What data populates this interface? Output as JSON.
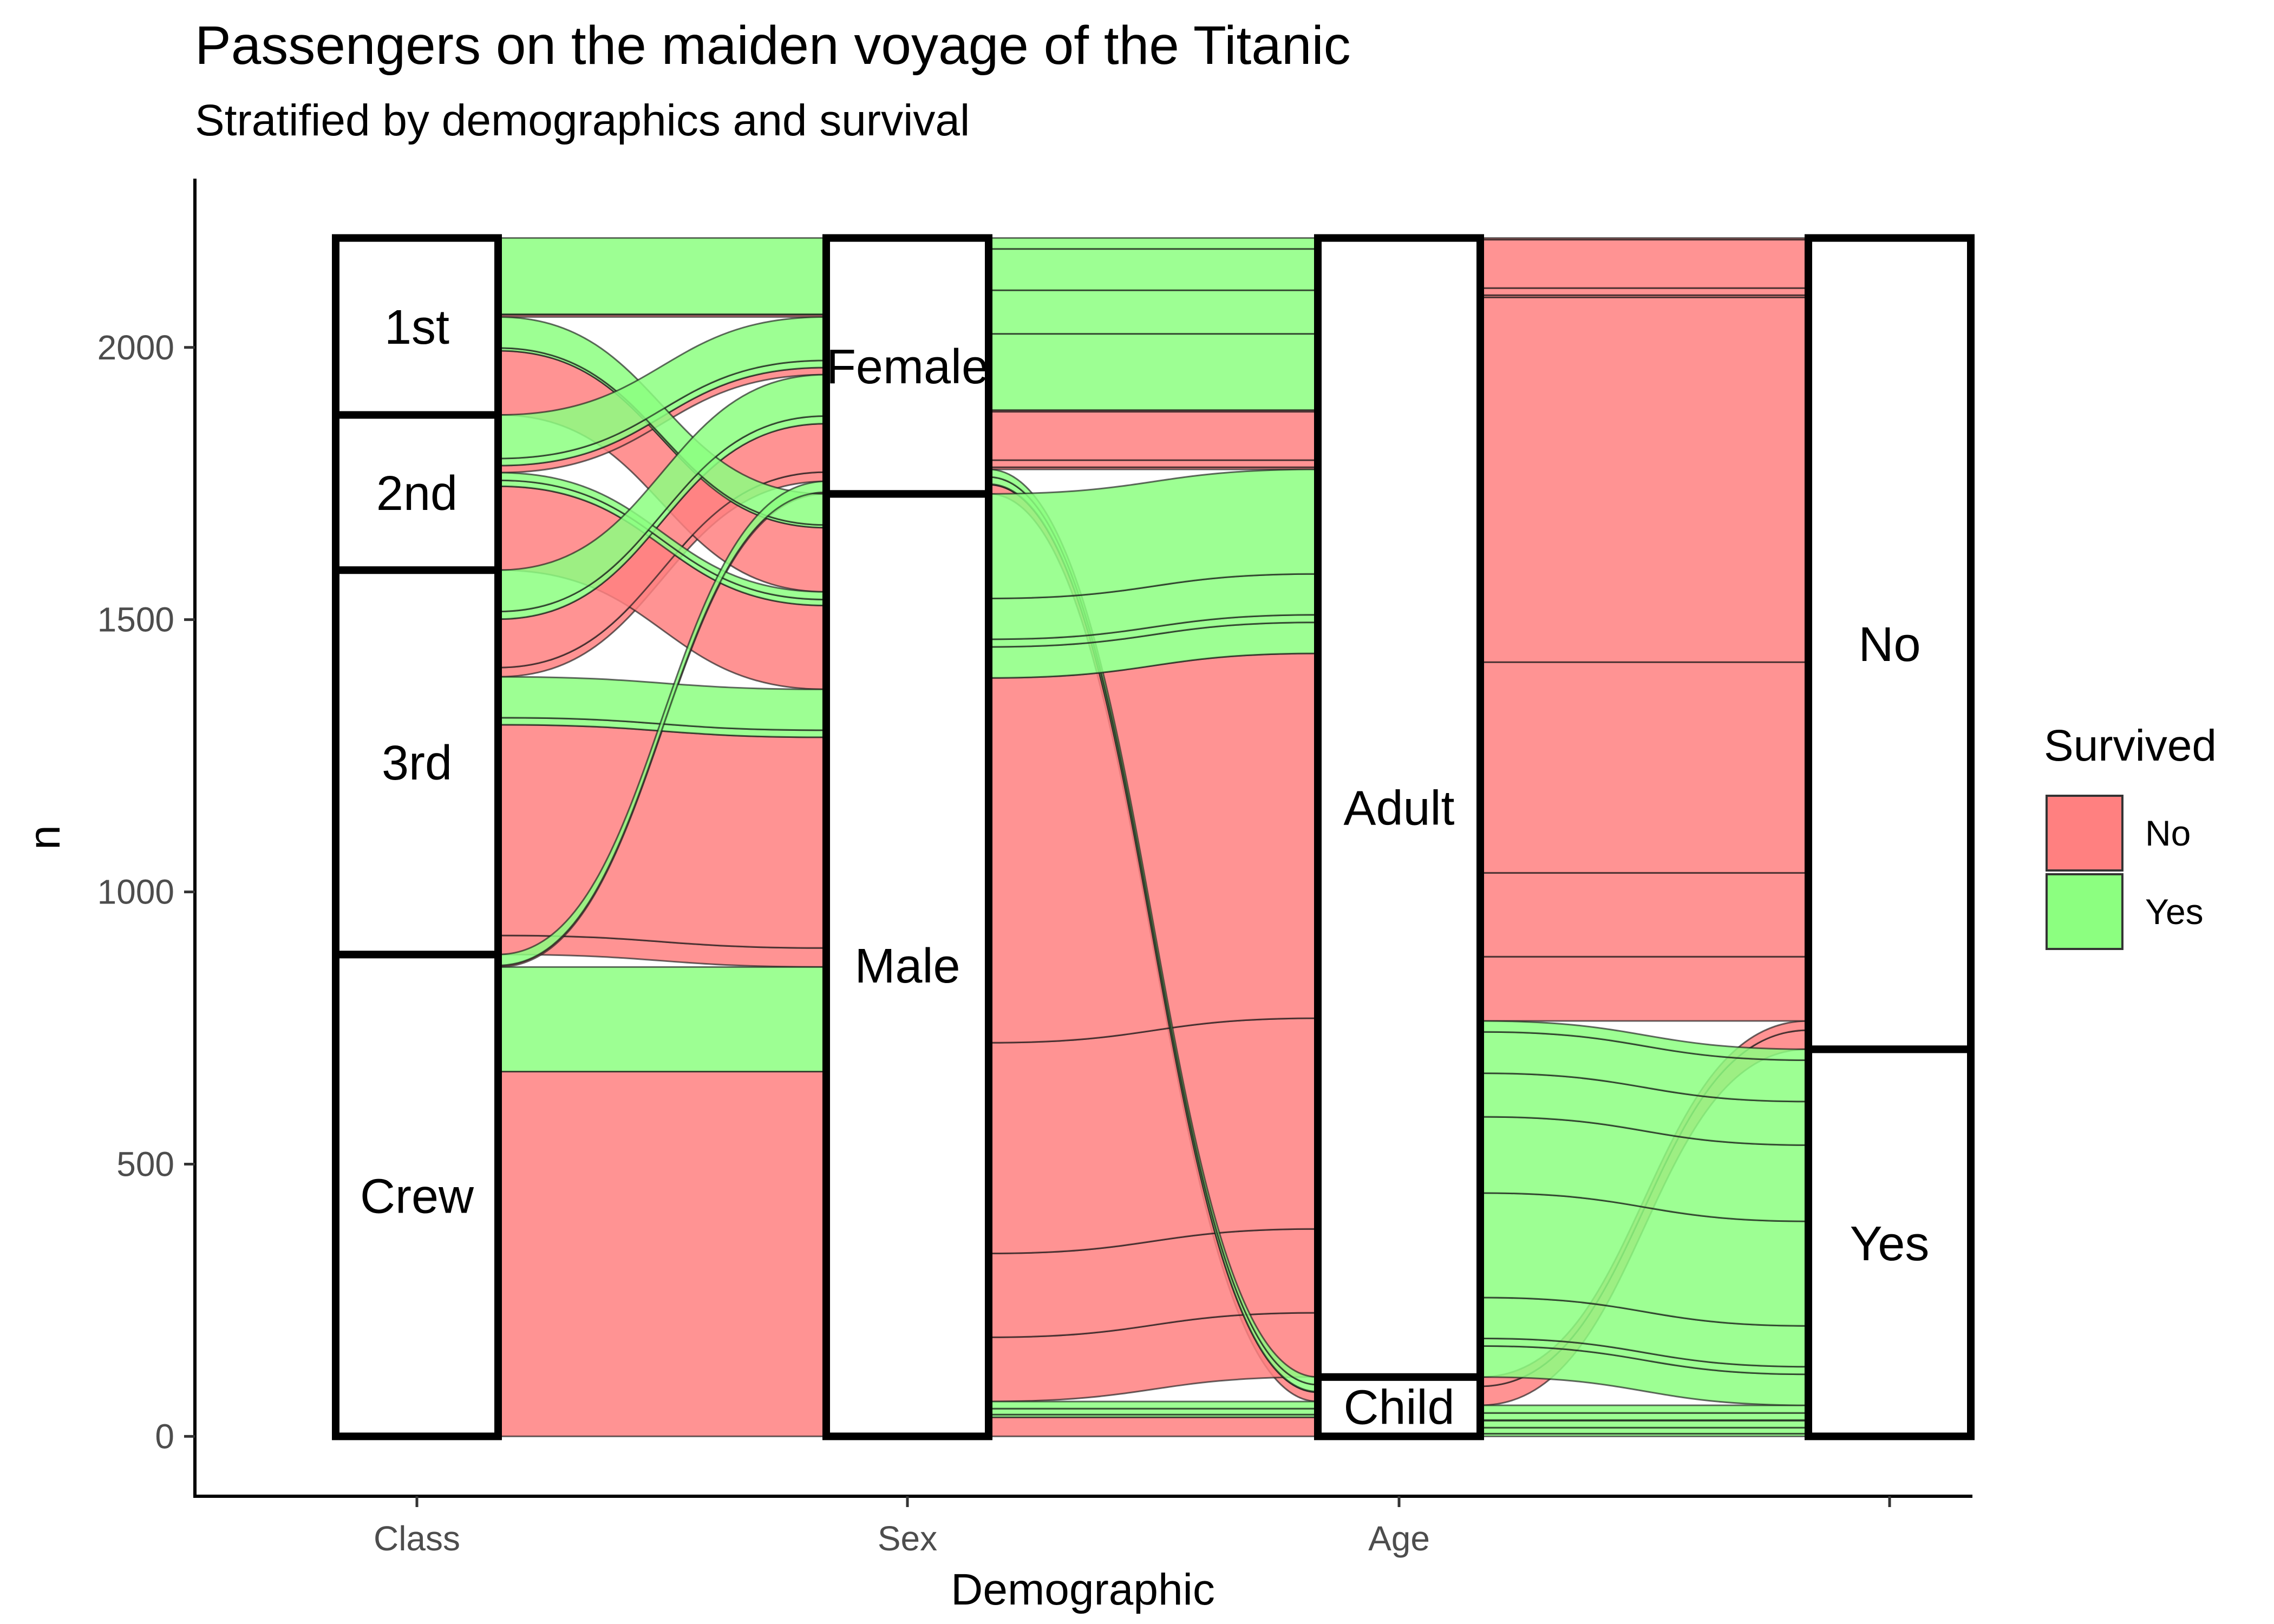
{
  "chart_data": {
    "type": "alluvial",
    "title": "Passengers on the maiden voyage of the Titanic",
    "subtitle": "Stratified by demographics and survival",
    "xlabel": "Demographic",
    "ylabel": "n",
    "ylim": [
      -110,
      2310
    ],
    "y_ticks": [
      0,
      500,
      1000,
      1500,
      2000
    ],
    "axes": [
      {
        "name": "Class",
        "label": "Class",
        "strata": [
          "Crew",
          "3rd",
          "2nd",
          "1st"
        ]
      },
      {
        "name": "Sex",
        "label": "Sex",
        "strata": [
          "Male",
          "Female"
        ]
      },
      {
        "name": "Age",
        "label": "Age",
        "strata": [
          "Child",
          "Adult"
        ]
      },
      {
        "name": "Survived",
        "label": "",
        "strata": [
          "Yes",
          "No"
        ]
      }
    ],
    "colors": {
      "No": "#ff8080",
      "Yes": "#8cff80"
    },
    "legend": {
      "title": "Survived",
      "position": "right",
      "entries": [
        "No",
        "Yes"
      ]
    },
    "grid": false,
    "records": [
      {
        "Class": "1st",
        "Sex": "Male",
        "Age": "Child",
        "Survived": "No",
        "n": 0
      },
      {
        "Class": "2nd",
        "Sex": "Male",
        "Age": "Child",
        "Survived": "No",
        "n": 0
      },
      {
        "Class": "3rd",
        "Sex": "Male",
        "Age": "Child",
        "Survived": "No",
        "n": 35
      },
      {
        "Class": "Crew",
        "Sex": "Male",
        "Age": "Child",
        "Survived": "No",
        "n": 0
      },
      {
        "Class": "1st",
        "Sex": "Female",
        "Age": "Child",
        "Survived": "No",
        "n": 0
      },
      {
        "Class": "2nd",
        "Sex": "Female",
        "Age": "Child",
        "Survived": "No",
        "n": 0
      },
      {
        "Class": "3rd",
        "Sex": "Female",
        "Age": "Child",
        "Survived": "No",
        "n": 17
      },
      {
        "Class": "Crew",
        "Sex": "Female",
        "Age": "Child",
        "Survived": "No",
        "n": 0
      },
      {
        "Class": "1st",
        "Sex": "Male",
        "Age": "Adult",
        "Survived": "No",
        "n": 118
      },
      {
        "Class": "2nd",
        "Sex": "Male",
        "Age": "Adult",
        "Survived": "No",
        "n": 154
      },
      {
        "Class": "3rd",
        "Sex": "Male",
        "Age": "Adult",
        "Survived": "No",
        "n": 387
      },
      {
        "Class": "Crew",
        "Sex": "Male",
        "Age": "Adult",
        "Survived": "No",
        "n": 670
      },
      {
        "Class": "1st",
        "Sex": "Female",
        "Age": "Adult",
        "Survived": "No",
        "n": 4
      },
      {
        "Class": "2nd",
        "Sex": "Female",
        "Age": "Adult",
        "Survived": "No",
        "n": 13
      },
      {
        "Class": "3rd",
        "Sex": "Female",
        "Age": "Adult",
        "Survived": "No",
        "n": 89
      },
      {
        "Class": "Crew",
        "Sex": "Female",
        "Age": "Adult",
        "Survived": "No",
        "n": 3
      },
      {
        "Class": "1st",
        "Sex": "Male",
        "Age": "Child",
        "Survived": "Yes",
        "n": 5
      },
      {
        "Class": "2nd",
        "Sex": "Male",
        "Age": "Child",
        "Survived": "Yes",
        "n": 11
      },
      {
        "Class": "3rd",
        "Sex": "Male",
        "Age": "Child",
        "Survived": "Yes",
        "n": 13
      },
      {
        "Class": "Crew",
        "Sex": "Male",
        "Age": "Child",
        "Survived": "Yes",
        "n": 0
      },
      {
        "Class": "1st",
        "Sex": "Female",
        "Age": "Child",
        "Survived": "Yes",
        "n": 1
      },
      {
        "Class": "2nd",
        "Sex": "Female",
        "Age": "Child",
        "Survived": "Yes",
        "n": 13
      },
      {
        "Class": "3rd",
        "Sex": "Female",
        "Age": "Child",
        "Survived": "Yes",
        "n": 14
      },
      {
        "Class": "Crew",
        "Sex": "Female",
        "Age": "Child",
        "Survived": "Yes",
        "n": 0
      },
      {
        "Class": "1st",
        "Sex": "Male",
        "Age": "Adult",
        "Survived": "Yes",
        "n": 57
      },
      {
        "Class": "2nd",
        "Sex": "Male",
        "Age": "Adult",
        "Survived": "Yes",
        "n": 14
      },
      {
        "Class": "3rd",
        "Sex": "Male",
        "Age": "Adult",
        "Survived": "Yes",
        "n": 75
      },
      {
        "Class": "Crew",
        "Sex": "Male",
        "Age": "Adult",
        "Survived": "Yes",
        "n": 192
      },
      {
        "Class": "1st",
        "Sex": "Female",
        "Age": "Adult",
        "Survived": "Yes",
        "n": 140
      },
      {
        "Class": "2nd",
        "Sex": "Female",
        "Age": "Adult",
        "Survived": "Yes",
        "n": 80
      },
      {
        "Class": "3rd",
        "Sex": "Female",
        "Age": "Adult",
        "Survived": "Yes",
        "n": 76
      },
      {
        "Class": "Crew",
        "Sex": "Female",
        "Age": "Adult",
        "Survived": "Yes",
        "n": 20
      }
    ]
  }
}
